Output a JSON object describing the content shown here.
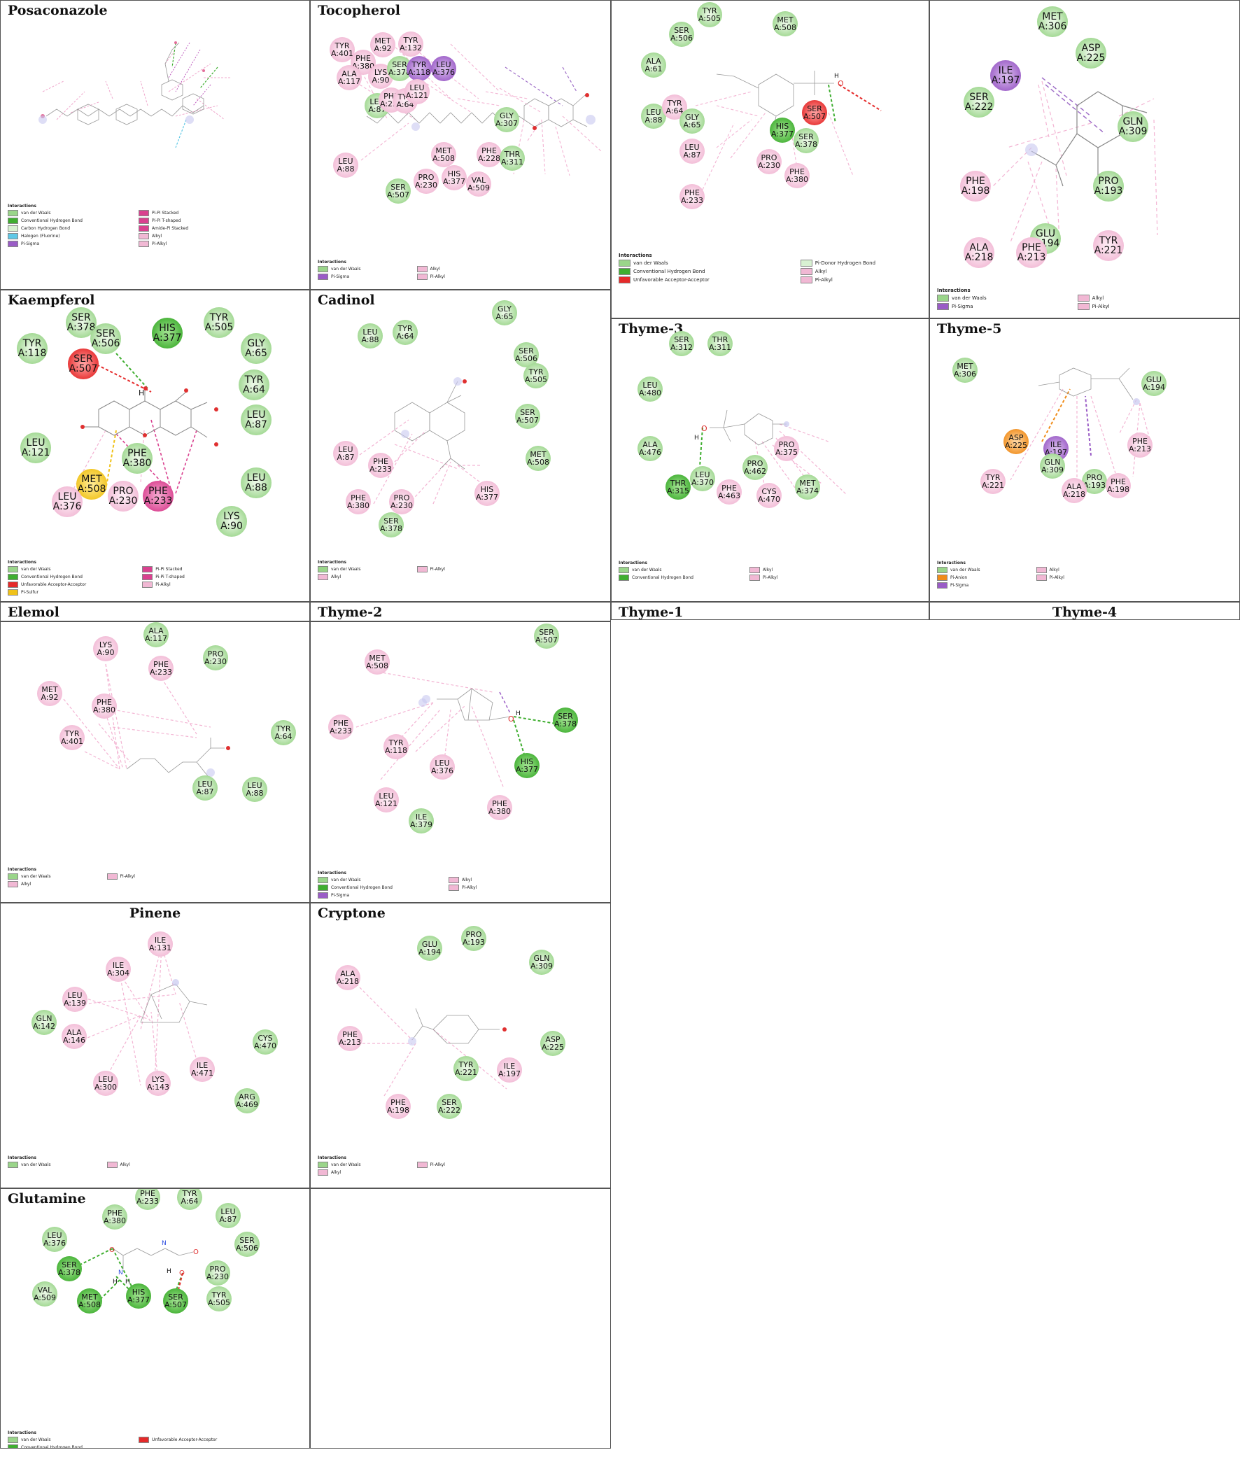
{
  "legend_title": "Interactions",
  "colors": {
    "vdw": "#9ad58a",
    "hb": "#3fae30",
    "ch": "#d8f1d2",
    "hal": "#5ec8e6",
    "sig": "#9a5cc6",
    "pipi": "#d9418f",
    "alk": "#f1b8d4",
    "unf": "#e52a2a",
    "sulf": "#f0c21a",
    "anion": "#f08c1a"
  },
  "legend_labels": {
    "vdw": "van der Waals",
    "hb": "Conventional Hydrogen Bond",
    "ch": "Carbon Hydrogen Bond",
    "hal": "Halogen (Fluorine)",
    "sig": "Pi-Sigma",
    "pipi": "Pi-Pi Stacked",
    "pit": "Pi-Pi T-shaped",
    "amide": "Amide-Pi Stacked",
    "alk": "Alkyl",
    "pialk": "Pi-Alkyl",
    "unf": "Unfavorable Acceptor-Acceptor",
    "sulf": "Pi-Sulfur",
    "pdh": "Pi-Donor Hydrogen Bond",
    "anion": "Pi-Anion"
  },
  "panels": [
    {
      "name": "posaconazole",
      "title": "Posaconazole",
      "residues": [],
      "legend": [
        [
          "vdw",
          "hb",
          "ch",
          "hal",
          "sig"
        ],
        [
          "pipi",
          "pit",
          "amide",
          "alk",
          "pialk"
        ]
      ]
    },
    {
      "name": "tocopherol",
      "title": "Tocopherol",
      "residues": [
        {
          "n": "TYR",
          "u": "A:401",
          "k": "alk",
          "s": 1
        },
        {
          "n": "MET",
          "u": "A:92",
          "k": "alk",
          "s": 1
        },
        {
          "n": "TYR",
          "u": "A:132",
          "k": "alk",
          "s": 1
        },
        {
          "n": "PHE",
          "u": "A:380",
          "k": "alk",
          "s": 1
        },
        {
          "n": "ALA",
          "u": "A:117",
          "k": "alk",
          "s": 1
        },
        {
          "n": "LYS",
          "u": "A:90",
          "k": "alk",
          "s": 1
        },
        {
          "n": "SER",
          "u": "A:378",
          "k": "vdw",
          "s": 1
        },
        {
          "n": "TYR",
          "u": "A:118",
          "k": "sig",
          "s": 1
        },
        {
          "n": "LEU",
          "u": "A:376",
          "k": "sig",
          "s": 1
        },
        {
          "n": "LEU",
          "u": "A:87",
          "k": "vdw",
          "s": 1
        },
        {
          "n": "PHE",
          "u": "A:233",
          "k": "alk",
          "s": 1
        },
        {
          "n": "TYR",
          "u": "A:64",
          "k": "alk",
          "s": 1
        },
        {
          "n": "LEU",
          "u": "A:121",
          "k": "alk",
          "s": 1
        },
        {
          "n": "GLY",
          "u": "A:307",
          "k": "vdw",
          "s": 1
        },
        {
          "n": "LEU",
          "u": "A:88",
          "k": "alk",
          "s": 1
        },
        {
          "n": "MET",
          "u": "A:508",
          "k": "alk",
          "s": 1
        },
        {
          "n": "PHE",
          "u": "A:228",
          "k": "alk",
          "s": 1
        },
        {
          "n": "THR",
          "u": "A:311",
          "k": "vdw",
          "s": 1
        },
        {
          "n": "PRO",
          "u": "A:230",
          "k": "alk",
          "s": 1
        },
        {
          "n": "HIS",
          "u": "A:377",
          "k": "alk",
          "s": 1
        },
        {
          "n": "VAL",
          "u": "A:509",
          "k": "alk",
          "s": 1
        },
        {
          "n": "SER",
          "u": "A:507",
          "k": "vdw",
          "s": 1
        }
      ],
      "legend": [
        [
          "vdw",
          "sig"
        ],
        [
          "alk",
          "pialk"
        ]
      ]
    },
    {
      "name": "thyme-1",
      "title": "Thyme-1",
      "residues": [
        {
          "n": "TYR",
          "u": "A:505",
          "k": "vdw",
          "s": 1
        },
        {
          "n": "SER",
          "u": "A:506",
          "k": "vdw",
          "s": 1
        },
        {
          "n": "MET",
          "u": "A:508",
          "k": "vdw",
          "s": 1
        },
        {
          "n": "ALA",
          "u": "A:61",
          "k": "vdw",
          "s": 1
        },
        {
          "n": "LEU",
          "u": "A:88",
          "k": "vdw",
          "s": 1
        },
        {
          "n": "TYR",
          "u": "A:64",
          "k": "alk",
          "s": 1
        },
        {
          "n": "GLY",
          "u": "A:65",
          "k": "vdw",
          "s": 1
        },
        {
          "n": "SER",
          "u": "A:507",
          "k": "unf",
          "s": 1
        },
        {
          "n": "HIS",
          "u": "A:377",
          "k": "hb",
          "s": 1
        },
        {
          "n": "SER",
          "u": "A:378",
          "k": "vdw",
          "s": 1
        },
        {
          "n": "LEU",
          "u": "A:87",
          "k": "alk",
          "s": 1
        },
        {
          "n": "PRO",
          "u": "A:230",
          "k": "alk",
          "s": 1
        },
        {
          "n": "PHE",
          "u": "A:380",
          "k": "alk",
          "s": 1
        },
        {
          "n": "PHE",
          "u": "A:233",
          "k": "alk",
          "s": 1
        }
      ],
      "legend": [
        [
          "vdw",
          "hb",
          "unf"
        ],
        [
          "pdh",
          "alk",
          "pialk"
        ]
      ]
    },
    {
      "name": "thyme-4",
      "title": "Thyme-4",
      "residues": [
        {
          "n": "MET",
          "u": "A:306",
          "k": "vdw",
          "s": 0
        },
        {
          "n": "ASP",
          "u": "A:225",
          "k": "vdw",
          "s": 0
        },
        {
          "n": "ILE",
          "u": "A:197",
          "k": "sig",
          "s": 0
        },
        {
          "n": "SER",
          "u": "A:222",
          "k": "vdw",
          "s": 0
        },
        {
          "n": "GLN",
          "u": "A:309",
          "k": "vdw",
          "s": 0
        },
        {
          "n": "PRO",
          "u": "A:193",
          "k": "vdw",
          "s": 0
        },
        {
          "n": "PHE",
          "u": "A:198",
          "k": "alk",
          "s": 0
        },
        {
          "n": "GLU",
          "u": "A:194",
          "k": "vdw",
          "s": 0
        },
        {
          "n": "ALA",
          "u": "A:218",
          "k": "alk",
          "s": 0
        },
        {
          "n": "PHE",
          "u": "A:213",
          "k": "alk",
          "s": 0
        },
        {
          "n": "TYR",
          "u": "A:221",
          "k": "alk",
          "s": 0
        }
      ],
      "legend": [
        [
          "vdw",
          "sig"
        ],
        [
          "alk",
          "pialk"
        ]
      ]
    },
    {
      "name": "kaempferol",
      "title": "Kaempferol",
      "residues": [
        {
          "n": "SER",
          "u": "A:378",
          "k": "vdw",
          "s": 0
        },
        {
          "n": "SER",
          "u": "A:506",
          "k": "vdw",
          "s": 0
        },
        {
          "n": "HIS",
          "u": "A:377",
          "k": "hb",
          "s": 0
        },
        {
          "n": "TYR",
          "u": "A:505",
          "k": "vdw",
          "s": 0
        },
        {
          "n": "TYR",
          "u": "A:118",
          "k": "vdw",
          "s": 0
        },
        {
          "n": "GLY",
          "u": "A:65",
          "k": "vdw",
          "s": 0
        },
        {
          "n": "SER",
          "u": "A:507",
          "k": "unf",
          "s": 0
        },
        {
          "n": "TYR",
          "u": "A:64",
          "k": "vdw",
          "s": 0
        },
        {
          "n": "LEU",
          "u": "A:87",
          "k": "vdw",
          "s": 0
        },
        {
          "n": "LEU",
          "u": "A:121",
          "k": "vdw",
          "s": 0
        },
        {
          "n": "PHE",
          "u": "A:380",
          "k": "vdw",
          "s": 0
        },
        {
          "n": "MET",
          "u": "A:508",
          "k": "sulf",
          "s": 0
        },
        {
          "n": "LEU",
          "u": "A:88",
          "k": "vdw",
          "s": 0
        },
        {
          "n": "LEU",
          "u": "A:376",
          "k": "alk",
          "s": 0
        },
        {
          "n": "PRO",
          "u": "A:230",
          "k": "alk",
          "s": 0
        },
        {
          "n": "PHE",
          "u": "A:233",
          "k": "pipi",
          "s": 0
        },
        {
          "n": "LYS",
          "u": "A:90",
          "k": "vdw",
          "s": 0
        }
      ],
      "legend": [
        [
          "vdw",
          "hb",
          "unf",
          "sulf"
        ],
        [
          "pipi",
          "pit",
          "pialk"
        ]
      ]
    },
    {
      "name": "cadinol",
      "title": "Cadinol",
      "residues": [
        {
          "n": "GLY",
          "u": "A:65",
          "k": "vdw",
          "s": 1
        },
        {
          "n": "LEU",
          "u": "A:88",
          "k": "vdw",
          "s": 1
        },
        {
          "n": "TYR",
          "u": "A:64",
          "k": "vdw",
          "s": 1
        },
        {
          "n": "SER",
          "u": "A:506",
          "k": "vdw",
          "s": 1
        },
        {
          "n": "TYR",
          "u": "A:505",
          "k": "vdw",
          "s": 1
        },
        {
          "n": "SER",
          "u": "A:507",
          "k": "vdw",
          "s": 1
        },
        {
          "n": "LEU",
          "u": "A:87",
          "k": "alk",
          "s": 1
        },
        {
          "n": "PHE",
          "u": "A:233",
          "k": "alk",
          "s": 1
        },
        {
          "n": "MET",
          "u": "A:508",
          "k": "vdw",
          "s": 1
        },
        {
          "n": "PHE",
          "u": "A:380",
          "k": "alk",
          "s": 1
        },
        {
          "n": "PRO",
          "u": "A:230",
          "k": "alk",
          "s": 1
        },
        {
          "n": "HIS",
          "u": "A:377",
          "k": "alk",
          "s": 1
        },
        {
          "n": "SER",
          "u": "A:378",
          "k": "vdw",
          "s": 1
        }
      ],
      "legend": [
        [
          "vdw",
          "alk"
        ],
        [
          "pialk"
        ]
      ]
    },
    {
      "name": "thyme-3",
      "title": "Thyme-3",
      "residues": [
        {
          "n": "SER",
          "u": "A:312",
          "k": "vdw",
          "s": 1
        },
        {
          "n": "THR",
          "u": "A:311",
          "k": "vdw",
          "s": 1
        },
        {
          "n": "LEU",
          "u": "A:480",
          "k": "vdw",
          "s": 1
        },
        {
          "n": "ALA",
          "u": "A:476",
          "k": "vdw",
          "s": 1
        },
        {
          "n": "PRO",
          "u": "A:375",
          "k": "alk",
          "s": 1
        },
        {
          "n": "PRO",
          "u": "A:462",
          "k": "vdw",
          "s": 1
        },
        {
          "n": "LEU",
          "u": "A:370",
          "k": "vdw",
          "s": 1
        },
        {
          "n": "THR",
          "u": "A:315",
          "k": "hb",
          "s": 1
        },
        {
          "n": "PHE",
          "u": "A:463",
          "k": "alk",
          "s": 1
        },
        {
          "n": "CYS",
          "u": "A:470",
          "k": "alk",
          "s": 1
        },
        {
          "n": "MET",
          "u": "A:374",
          "k": "vdw",
          "s": 1
        }
      ],
      "legend": [
        [
          "vdw",
          "hb"
        ],
        [
          "alk",
          "pialk"
        ]
      ]
    },
    {
      "name": "thyme-5",
      "title": "Thyme-5",
      "residues": [
        {
          "n": "MET",
          "u": "A:306",
          "k": "vdw",
          "s": 1
        },
        {
          "n": "GLU",
          "u": "A:194",
          "k": "vdw",
          "s": 1
        },
        {
          "n": "ASP",
          "u": "A:225",
          "k": "anion",
          "s": 1
        },
        {
          "n": "ILE",
          "u": "A:197",
          "k": "sig",
          "s": 1
        },
        {
          "n": "PHE",
          "u": "A:213",
          "k": "alk",
          "s": 1
        },
        {
          "n": "GLN",
          "u": "A:309",
          "k": "vdw",
          "s": 1
        },
        {
          "n": "TYR",
          "u": "A:221",
          "k": "alk",
          "s": 1
        },
        {
          "n": "PRO",
          "u": "A:193",
          "k": "vdw",
          "s": 1
        },
        {
          "n": "PHE",
          "u": "A:198",
          "k": "alk",
          "s": 1
        },
        {
          "n": "ALA",
          "u": "A:218",
          "k": "alk",
          "s": 1
        }
      ],
      "legend": [
        [
          "vdw",
          "anion",
          "sig"
        ],
        [
          "alk",
          "pialk"
        ]
      ]
    },
    {
      "name": "elemol",
      "title": "Elemol",
      "residues": [
        {
          "n": "ALA",
          "u": "A:117",
          "k": "vdw",
          "s": 1
        },
        {
          "n": "LYS",
          "u": "A:90",
          "k": "alk",
          "s": 1
        },
        {
          "n": "PRO",
          "u": "A:230",
          "k": "vdw",
          "s": 1
        },
        {
          "n": "PHE",
          "u": "A:233",
          "k": "alk",
          "s": 1
        },
        {
          "n": "MET",
          "u": "A:92",
          "k": "alk",
          "s": 1
        },
        {
          "n": "PHE",
          "u": "A:380",
          "k": "alk",
          "s": 1
        },
        {
          "n": "TYR",
          "u": "A:401",
          "k": "alk",
          "s": 1
        },
        {
          "n": "TYR",
          "u": "A:64",
          "k": "vdw",
          "s": 1
        },
        {
          "n": "LEU",
          "u": "A:87",
          "k": "vdw",
          "s": 1
        },
        {
          "n": "LEU",
          "u": "A:88",
          "k": "vdw",
          "s": 1
        }
      ],
      "legend": [
        [
          "vdw",
          "alk"
        ],
        [
          "pialk"
        ]
      ]
    },
    {
      "name": "thyme-2",
      "title": "Thyme-2",
      "residues": [
        {
          "n": "SER",
          "u": "A:507",
          "k": "vdw",
          "s": 1
        },
        {
          "n": "MET",
          "u": "A:508",
          "k": "alk",
          "s": 1
        },
        {
          "n": "SER",
          "u": "A:378",
          "k": "hb",
          "s": 1
        },
        {
          "n": "PHE",
          "u": "A:233",
          "k": "alk",
          "s": 1
        },
        {
          "n": "TYR",
          "u": "A:118",
          "k": "alk",
          "s": 1
        },
        {
          "n": "HIS",
          "u": "A:377",
          "k": "hb",
          "s": 1
        },
        {
          "n": "LEU",
          "u": "A:376",
          "k": "alk",
          "s": 1
        },
        {
          "n": "LEU",
          "u": "A:121",
          "k": "alk",
          "s": 1
        },
        {
          "n": "PHE",
          "u": "A:380",
          "k": "alk",
          "s": 1
        },
        {
          "n": "ILE",
          "u": "A:379",
          "k": "vdw",
          "s": 1
        }
      ],
      "legend": [
        [
          "vdw",
          "hb",
          "sig"
        ],
        [
          "alk",
          "pialk"
        ]
      ]
    },
    {
      "name": "pinene",
      "title": "Pinene",
      "residues": [
        {
          "n": "ILE",
          "u": "A:131",
          "k": "alk",
          "s": 1
        },
        {
          "n": "ILE",
          "u": "A:304",
          "k": "alk",
          "s": 1
        },
        {
          "n": "LEU",
          "u": "A:139",
          "k": "alk",
          "s": 1
        },
        {
          "n": "GLN",
          "u": "A:142",
          "k": "vdw",
          "s": 1
        },
        {
          "n": "ALA",
          "u": "A:146",
          "k": "alk",
          "s": 1
        },
        {
          "n": "CYS",
          "u": "A:470",
          "k": "vdw",
          "s": 1
        },
        {
          "n": "ILE",
          "u": "A:471",
          "k": "alk",
          "s": 1
        },
        {
          "n": "LEU",
          "u": "A:300",
          "k": "alk",
          "s": 1
        },
        {
          "n": "LYS",
          "u": "A:143",
          "k": "alk",
          "s": 1
        },
        {
          "n": "ARG",
          "u": "A:469",
          "k": "vdw",
          "s": 1
        }
      ],
      "legend": [
        [
          "vdw"
        ],
        [
          "alk"
        ]
      ]
    },
    {
      "name": "cryptone",
      "title": "Cryptone",
      "residues": [
        {
          "n": "PRO",
          "u": "A:193",
          "k": "vdw",
          "s": 1
        },
        {
          "n": "GLU",
          "u": "A:194",
          "k": "vdw",
          "s": 1
        },
        {
          "n": "GLN",
          "u": "A:309",
          "k": "vdw",
          "s": 1
        },
        {
          "n": "ALA",
          "u": "A:218",
          "k": "alk",
          "s": 1
        },
        {
          "n": "PHE",
          "u": "A:213",
          "k": "alk",
          "s": 1
        },
        {
          "n": "ASP",
          "u": "A:225",
          "k": "vdw",
          "s": 1
        },
        {
          "n": "TYR",
          "u": "A:221",
          "k": "vdw",
          "s": 1
        },
        {
          "n": "ILE",
          "u": "A:197",
          "k": "alk",
          "s": 1
        },
        {
          "n": "PHE",
          "u": "A:198",
          "k": "alk",
          "s": 1
        },
        {
          "n": "SER",
          "u": "A:222",
          "k": "vdw",
          "s": 1
        }
      ],
      "legend": [
        [
          "vdw",
          "alk"
        ],
        [
          "pialk"
        ]
      ]
    },
    {
      "name": "glutamine",
      "title": "Glutamine",
      "residues": [
        {
          "n": "PHE",
          "u": "A:233",
          "k": "vdw",
          "s": 1
        },
        {
          "n": "TYR",
          "u": "A:64",
          "k": "vdw",
          "s": 1
        },
        {
          "n": "PHE",
          "u": "A:380",
          "k": "vdw",
          "s": 1
        },
        {
          "n": "LEU",
          "u": "A:87",
          "k": "vdw",
          "s": 1
        },
        {
          "n": "LEU",
          "u": "A:376",
          "k": "vdw",
          "s": 1
        },
        {
          "n": "SER",
          "u": "A:506",
          "k": "vdw",
          "s": 1
        },
        {
          "n": "SER",
          "u": "A:378",
          "k": "hb",
          "s": 1
        },
        {
          "n": "PRO",
          "u": "A:230",
          "k": "vdw",
          "s": 1
        },
        {
          "n": "VAL",
          "u": "A:509",
          "k": "vdw",
          "s": 1
        },
        {
          "n": "HIS",
          "u": "A:377",
          "k": "hb",
          "s": 1
        },
        {
          "n": "MET",
          "u": "A:508",
          "k": "hb",
          "s": 1
        },
        {
          "n": "SER",
          "u": "A:507",
          "k": "hb",
          "s": 1
        },
        {
          "n": "TYR",
          "u": "A:505",
          "k": "vdw",
          "s": 1
        }
      ],
      "legend": [
        [
          "vdw",
          "hb"
        ],
        [
          "unf"
        ]
      ]
    }
  ]
}
